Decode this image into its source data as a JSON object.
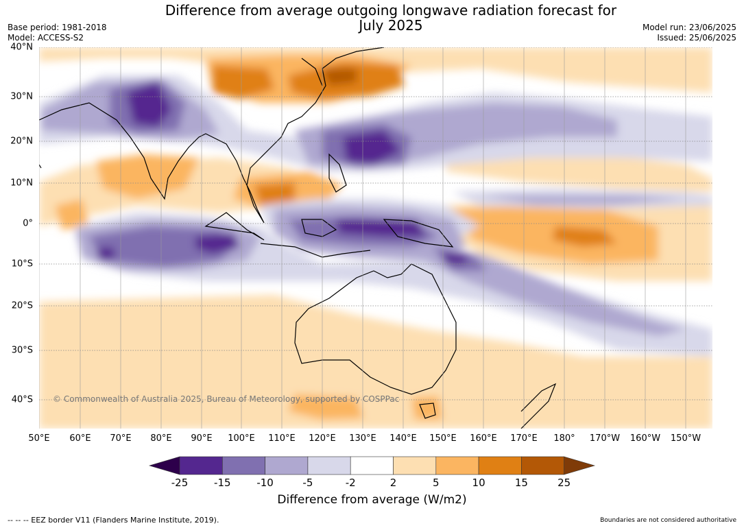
{
  "title": "Difference from average outgoing longwave radiation forecast for",
  "title_line2": "July 2025",
  "base_period": "Base period: 1981-2018",
  "model": "Model: ACCESS-S2",
  "model_run": "Model run: 23/06/2025",
  "issued": "Issued: 25/06/2025",
  "copyright": "© Commonwealth of Australia 2025, Bureau of Meteorology, supported by COSPPac",
  "lon_labels": [
    "50°E",
    "60°E",
    "70°E",
    "80°E",
    "90°E",
    "100°E",
    "110°E",
    "120°E",
    "130°E",
    "140°E",
    "150°E",
    "160°E",
    "170°E",
    "180°",
    "170°W",
    "160°W",
    "150°W"
  ],
  "lat_labels": [
    "40°N",
    "30°N",
    "20°N",
    "10°N",
    "0°",
    "10°S",
    "20°S",
    "30°S",
    "40°S"
  ],
  "colorbar": {
    "label": "Difference from average (W/m2)",
    "ticks": [
      "-25",
      "-15",
      "-10",
      "-5",
      "-2",
      "2",
      "5",
      "10",
      "15",
      "25"
    ],
    "colors": [
      "#54278f",
      "#8070b0",
      "#afa8d0",
      "#d8d8ea",
      "#ffffff",
      "#fddfb2",
      "#fbb561",
      "#e08014",
      "#b35806"
    ],
    "extend_low": "#2d004b",
    "extend_high": "#7f3b08"
  },
  "footer_left": "--  --  -- EEZ border V11 (Flanders Marine Institute, 2019).",
  "footer_right": "Boundaries are not considered authoritative"
}
